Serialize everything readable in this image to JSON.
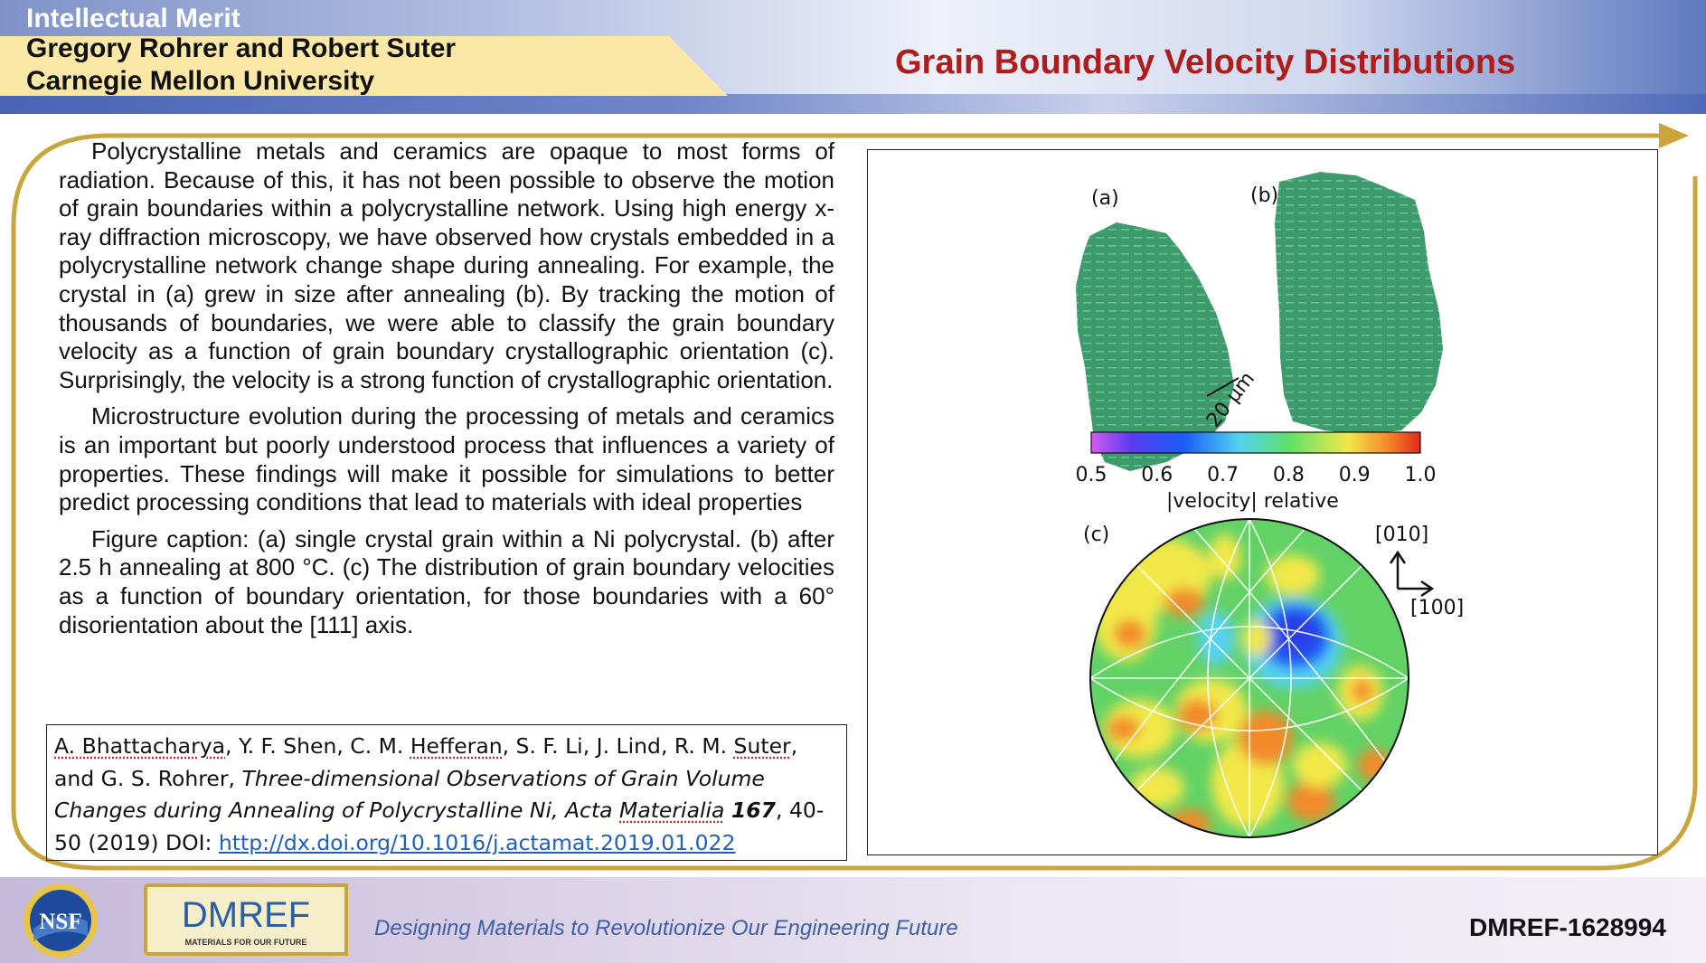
{
  "header": {
    "program": "Intellectual Merit",
    "authors_line1": "Gregory Rohrer and Robert Suter",
    "authors_line2": "Carnegie Mellon University",
    "title": "Grain Boundary Velocity Distributions"
  },
  "body": {
    "para1": "Polycrystalline metals and ceramics are opaque to most forms of radiation.  Because of this, it has not been possible to observe the motion of grain boundaries within a polycrystalline network.  Using high energy x-ray diffraction microscopy, we have observed how crystals embedded in a polycrystalline network change shape during annealing.  For example, the crystal in (a) grew in size after annealing (b).  By tracking the motion of thousands of boundaries, we were able to classify the grain boundary velocity as a function of grain boundary crystallographic orientation (c).  Surprisingly, the velocity is a strong function of crystallographic orientation.",
    "para2": "Microstructure evolution during the processing of metals and ceramics is an important but poorly understood process that influences a variety of properties.  These findings will make it possible for simulations to better predict processing conditions that lead to materials with ideal properties",
    "para3": "Figure caption: (a) single crystal grain within a Ni polycrystal.  (b) after 2.5 h annealing at 800 °C.  (c) The distribution of grain boundary velocities as a function of boundary orientation, for those boundaries with a  60° disorientation about the [111] axis."
  },
  "reference": {
    "author1": "A. Bhattacharya",
    "authors_mid": ", Y. F. Shen, C. M. ",
    "author3": "Hefferan",
    "authors_mid2": ", S. F. Li, J. Lind, R. M. ",
    "author7": "Suter",
    "authors_end": ", and G. S. Rohrer, ",
    "title": "Three-dimensional Observations of Grain Volume Changes during Annealing of Polycrystalline Ni, ",
    "journal_a": "Acta ",
    "journal_b": "Materialia",
    "volume": "167",
    "pages": ", 40-50 (2019) DOI: ",
    "doi": "http://dx.doi.org/10.1016/j.actamat.2019.01.022"
  },
  "figure": {
    "label_a": "(a)",
    "label_b": "(b)",
    "label_c": "(c)",
    "scale_bar": "20 μm",
    "colorbar_ticks": [
      "0.5",
      "0.6",
      "0.7",
      "0.8",
      "0.9",
      "1.0"
    ],
    "colorbar_label": "|velocity| relative",
    "colorbar_min": 0.5,
    "colorbar_max": 1.0,
    "axis_010": "[010]",
    "axis_100": "[100]",
    "grain_color": "#3e9a6b"
  },
  "footer": {
    "tagline": "Designing Materials to Revolutionize Our Engineering Future",
    "award": "DMREF-1628994",
    "nsf_text": "NSF",
    "dmref_text": "DMREF",
    "dmref_sub": "MATERIALS FOR OUR FUTURE"
  }
}
